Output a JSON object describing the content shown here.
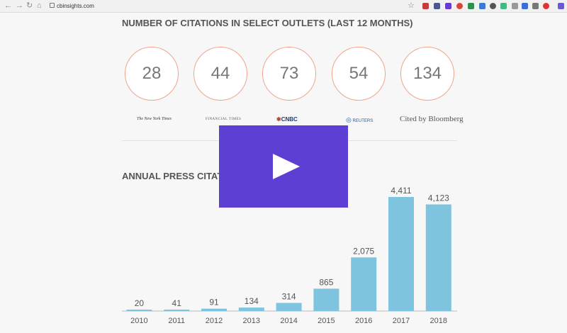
{
  "browser": {
    "url": "cbinsights.com",
    "nav_back": "←",
    "nav_forward": "→",
    "reload": "↻",
    "home": "⌂",
    "star": "☆"
  },
  "citations_section": {
    "title": "NUMBER OF CITATIONS IN SELECT OUTLETS (LAST 12 MONTHS)",
    "outlets": [
      {
        "value": "28",
        "logo": "The New York Times"
      },
      {
        "value": "44",
        "logo": "FINANCIAL TIMES"
      },
      {
        "value": "73",
        "logo": "CNBC"
      },
      {
        "value": "54",
        "logo": "REUTERS"
      },
      {
        "value": "134",
        "logo": "Cited by Bloomberg"
      }
    ]
  },
  "annual_section": {
    "title": "ANNUAL PRESS CITATIONS"
  },
  "chart_data": {
    "type": "bar",
    "categories": [
      "2010",
      "2011",
      "2012",
      "2013",
      "2014",
      "2015",
      "2016",
      "2017",
      "2018"
    ],
    "values": [
      20,
      41,
      91,
      134,
      314,
      865,
      2075,
      4411,
      4123
    ],
    "value_labels": [
      "20",
      "41",
      "91",
      "134",
      "314",
      "865",
      "2,075",
      "4,411",
      "4,123"
    ],
    "title": "",
    "xlabel": "",
    "ylabel": "",
    "ylim": [
      0,
      4411
    ],
    "bar_color": "#7fc4de",
    "grid": false
  },
  "video_overlay": {
    "color": "#5d3fd3",
    "icon": "play-icon"
  },
  "colors": {
    "circle_border": "#f0a48b",
    "cnbc_blue": "#1c3a7a",
    "reuters_blue": "#2a5b8c"
  }
}
